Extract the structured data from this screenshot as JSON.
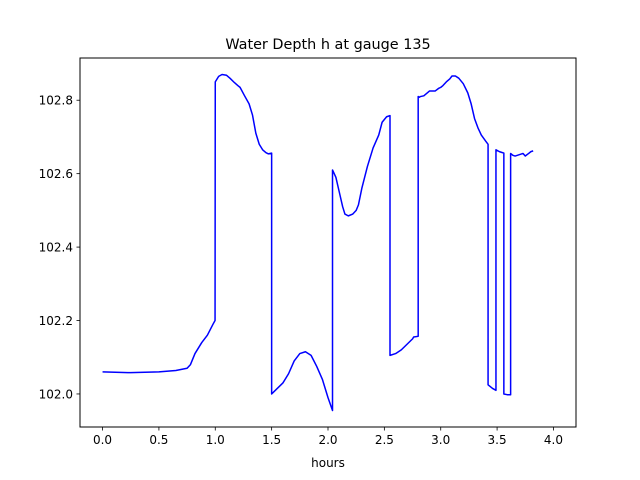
{
  "chart_data": {
    "type": "line",
    "title": "Water Depth h at gauge 135",
    "xlabel": "hours",
    "ylabel": "",
    "xlim": [
      -0.2,
      4.2
    ],
    "ylim": [
      101.91,
      102.915
    ],
    "xticks": [
      {
        "value": 0.0,
        "label": "0.0"
      },
      {
        "value": 0.5,
        "label": "0.5"
      },
      {
        "value": 1.0,
        "label": "1.0"
      },
      {
        "value": 1.5,
        "label": "1.5"
      },
      {
        "value": 2.0,
        "label": "2.0"
      },
      {
        "value": 2.5,
        "label": "2.5"
      },
      {
        "value": 3.0,
        "label": "3.0"
      },
      {
        "value": 3.5,
        "label": "3.5"
      },
      {
        "value": 4.0,
        "label": "4.0"
      }
    ],
    "yticks": [
      {
        "value": 102.0,
        "label": "102.0"
      },
      {
        "value": 102.2,
        "label": "102.2"
      },
      {
        "value": 102.4,
        "label": "102.4"
      },
      {
        "value": 102.6,
        "label": "102.6"
      },
      {
        "value": 102.8,
        "label": "102.8"
      }
    ],
    "grid": false,
    "series": [
      {
        "color": "#0000ff",
        "points": [
          [
            0.0,
            102.06
          ],
          [
            0.25,
            102.058
          ],
          [
            0.5,
            102.06
          ],
          [
            0.65,
            102.064
          ],
          [
            0.75,
            102.07
          ],
          [
            0.78,
            102.08
          ],
          [
            0.82,
            102.11
          ],
          [
            0.88,
            102.14
          ],
          [
            0.93,
            102.16
          ],
          [
            0.98,
            102.19
          ],
          [
            0.998,
            102.2
          ],
          [
            1.0,
            102.85
          ],
          [
            1.03,
            102.865
          ],
          [
            1.06,
            102.87
          ],
          [
            1.1,
            102.868
          ],
          [
            1.13,
            102.86
          ],
          [
            1.17,
            102.848
          ],
          [
            1.2,
            102.84
          ],
          [
            1.22,
            102.835
          ],
          [
            1.26,
            102.812
          ],
          [
            1.3,
            102.79
          ],
          [
            1.33,
            102.76
          ],
          [
            1.36,
            102.71
          ],
          [
            1.39,
            102.68
          ],
          [
            1.42,
            102.665
          ],
          [
            1.45,
            102.657
          ],
          [
            1.47,
            102.654
          ],
          [
            1.5,
            102.656
          ],
          [
            1.5,
            102.0
          ],
          [
            1.55,
            102.015
          ],
          [
            1.6,
            102.03
          ],
          [
            1.65,
            102.055
          ],
          [
            1.7,
            102.09
          ],
          [
            1.75,
            102.11
          ],
          [
            1.8,
            102.115
          ],
          [
            1.85,
            102.105
          ],
          [
            1.9,
            102.075
          ],
          [
            1.95,
            102.04
          ],
          [
            2.0,
            101.99
          ],
          [
            2.04,
            101.955
          ],
          [
            2.04,
            102.61
          ],
          [
            2.07,
            102.59
          ],
          [
            2.1,
            102.55
          ],
          [
            2.13,
            102.51
          ],
          [
            2.15,
            102.49
          ],
          [
            2.18,
            102.485
          ],
          [
            2.22,
            102.49
          ],
          [
            2.25,
            102.5
          ],
          [
            2.27,
            102.515
          ],
          [
            2.3,
            102.56
          ],
          [
            2.35,
            102.62
          ],
          [
            2.4,
            102.67
          ],
          [
            2.45,
            102.705
          ],
          [
            2.48,
            102.74
          ],
          [
            2.52,
            102.755
          ],
          [
            2.55,
            102.758
          ],
          [
            2.55,
            102.105
          ],
          [
            2.6,
            102.11
          ],
          [
            2.65,
            102.12
          ],
          [
            2.7,
            102.135
          ],
          [
            2.75,
            102.15
          ],
          [
            2.76,
            102.155
          ],
          [
            2.8,
            102.157
          ],
          [
            2.8,
            102.81
          ],
          [
            2.81,
            102.808
          ],
          [
            2.82,
            102.81
          ],
          [
            2.85,
            102.812
          ],
          [
            2.9,
            102.825
          ],
          [
            2.95,
            102.825
          ],
          [
            2.98,
            102.832
          ],
          [
            3.0,
            102.835
          ],
          [
            3.02,
            102.84
          ],
          [
            3.05,
            102.85
          ],
          [
            3.08,
            102.858
          ],
          [
            3.1,
            102.866
          ],
          [
            3.13,
            102.866
          ],
          [
            3.16,
            102.86
          ],
          [
            3.2,
            102.845
          ],
          [
            3.24,
            102.82
          ],
          [
            3.27,
            102.79
          ],
          [
            3.3,
            102.75
          ],
          [
            3.33,
            102.725
          ],
          [
            3.36,
            102.705
          ],
          [
            3.4,
            102.688
          ],
          [
            3.42,
            102.68
          ],
          [
            3.42,
            102.025
          ],
          [
            3.46,
            102.015
          ],
          [
            3.49,
            102.01
          ],
          [
            3.49,
            102.665
          ],
          [
            3.52,
            102.66
          ],
          [
            3.54,
            102.658
          ],
          [
            3.56,
            102.656
          ],
          [
            3.56,
            102.0
          ],
          [
            3.59,
            101.998
          ],
          [
            3.62,
            101.998
          ],
          [
            3.62,
            102.655
          ],
          [
            3.64,
            102.65
          ],
          [
            3.66,
            102.648
          ],
          [
            3.7,
            102.652
          ],
          [
            3.73,
            102.655
          ],
          [
            3.75,
            102.648
          ],
          [
            3.78,
            102.655
          ],
          [
            3.8,
            102.66
          ],
          [
            3.82,
            102.662
          ]
        ]
      }
    ]
  }
}
